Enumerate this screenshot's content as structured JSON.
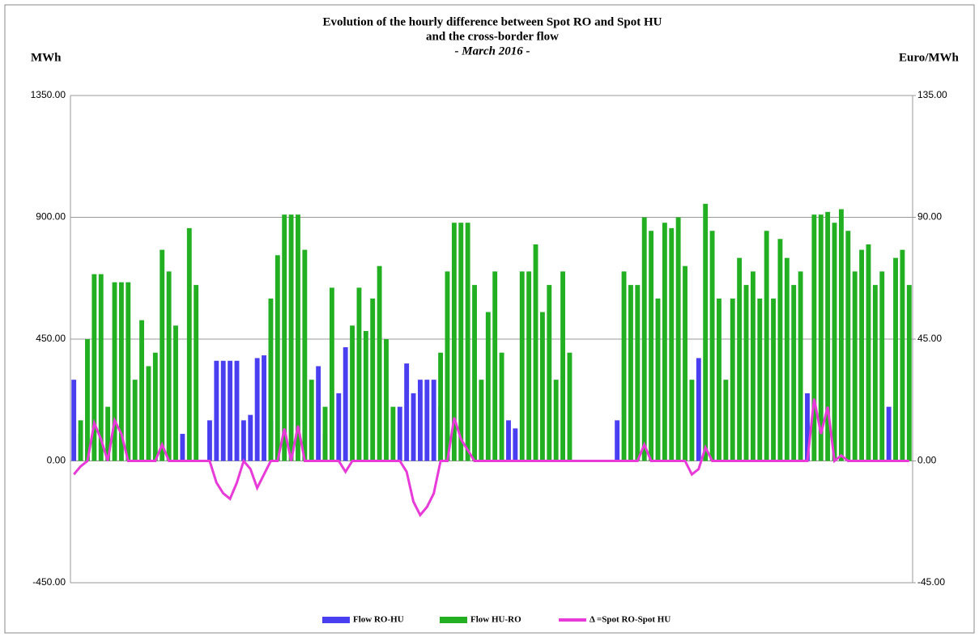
{
  "chart_data": {
    "type": "combo",
    "title": [
      "Evolution of the hourly difference between Spot RO and Spot HU",
      "and the cross-border flow",
      "- March 2016 -"
    ],
    "y_label": "MWh",
    "y2_label": "Euro/MWh",
    "ylim": [
      -450,
      1350
    ],
    "yticks": [
      {
        "value": -450,
        "label": "-450.00"
      },
      {
        "value": 0,
        "label": "0.00"
      },
      {
        "value": 450,
        "label": "450.00"
      },
      {
        "value": 900,
        "label": "900.00"
      },
      {
        "value": 1350,
        "label": "1350.00"
      }
    ],
    "y2lim": [
      -45,
      135
    ],
    "y2ticks": [
      {
        "value": -45,
        "label": "-45.00"
      },
      {
        "value": 0,
        "label": "0.00"
      },
      {
        "value": 45,
        "label": "45.00"
      },
      {
        "value": 90,
        "label": "90.00"
      },
      {
        "value": 135,
        "label": "135.00"
      }
    ],
    "grid": true,
    "legend": "bottom",
    "series": [
      {
        "name": "Flow RO-HU",
        "type": "bar",
        "color": "#4a3ff0",
        "values": [
          300,
          100,
          0,
          0,
          0,
          0,
          0,
          0,
          0,
          0,
          0,
          0,
          0,
          0,
          0,
          0,
          100,
          0,
          0,
          0,
          150,
          370,
          370,
          370,
          370,
          150,
          170,
          380,
          390,
          150,
          0,
          0,
          0,
          0,
          0,
          0,
          350,
          100,
          0,
          250,
          420,
          0,
          0,
          0,
          0,
          0,
          0,
          0,
          200,
          360,
          250,
          300,
          300,
          300,
          200,
          100,
          0,
          0,
          0,
          0,
          0,
          0,
          0,
          0,
          150,
          120,
          0,
          0,
          0,
          0,
          0,
          0,
          0,
          0,
          0,
          0,
          0,
          0,
          0,
          0,
          150,
          0,
          0,
          0,
          0,
          0,
          0,
          0,
          0,
          0,
          0,
          0,
          380,
          0,
          0,
          0,
          0,
          0,
          0,
          0,
          0,
          0,
          0,
          0,
          0,
          0,
          0,
          0,
          250,
          0,
          0,
          0,
          0,
          0,
          0,
          0,
          0,
          0,
          0,
          0,
          200,
          0,
          0,
          0
        ]
      },
      {
        "name": "Flow HU-RO",
        "type": "bar",
        "color": "#22b022",
        "values": [
          0,
          150,
          450,
          690,
          690,
          200,
          660,
          660,
          660,
          300,
          520,
          350,
          400,
          780,
          700,
          500,
          0,
          860,
          650,
          0,
          0,
          0,
          0,
          0,
          0,
          0,
          0,
          0,
          0,
          600,
          760,
          910,
          910,
          910,
          780,
          300,
          0,
          200,
          640,
          0,
          0,
          500,
          640,
          480,
          600,
          720,
          450,
          200,
          0,
          0,
          0,
          0,
          0,
          0,
          400,
          700,
          880,
          880,
          880,
          650,
          300,
          550,
          700,
          400,
          0,
          0,
          700,
          700,
          800,
          550,
          650,
          300,
          700,
          400,
          0,
          0,
          0,
          0,
          0,
          0,
          0,
          700,
          650,
          650,
          900,
          850,
          600,
          880,
          860,
          900,
          720,
          300,
          0,
          950,
          850,
          600,
          300,
          600,
          750,
          650,
          700,
          600,
          850,
          600,
          820,
          750,
          650,
          700,
          0,
          910,
          910,
          920,
          880,
          930,
          850,
          700,
          780,
          800,
          650,
          700,
          0,
          750,
          780,
          650
        ]
      },
      {
        "name": "Δ =Spot RO-Spot HU",
        "type": "line",
        "axis": "y2",
        "color": "#e83ad8",
        "values": [
          -5,
          -2,
          0,
          14,
          8,
          0,
          15,
          10,
          0,
          0,
          0,
          0,
          0,
          6,
          0,
          0,
          0,
          0,
          0,
          0,
          0,
          -8,
          -12,
          -14,
          -8,
          0,
          -3,
          -10,
          -5,
          0,
          0,
          12,
          0,
          13,
          0,
          0,
          0,
          0,
          0,
          0,
          -4,
          0,
          0,
          0,
          0,
          0,
          0,
          0,
          0,
          -4,
          -15,
          -20,
          -17,
          -12,
          0,
          0,
          16,
          8,
          4,
          0,
          0,
          0,
          0,
          0,
          0,
          0,
          0,
          0,
          0,
          0,
          0,
          0,
          0,
          0,
          0,
          0,
          0,
          0,
          0,
          0,
          0,
          0,
          0,
          0,
          6,
          0,
          0,
          0,
          0,
          0,
          0,
          -5,
          -3,
          5,
          0,
          0,
          0,
          0,
          0,
          0,
          0,
          0,
          0,
          0,
          0,
          0,
          0,
          0,
          0,
          23,
          10,
          20,
          0,
          2,
          0,
          0,
          0,
          0,
          0,
          0,
          0,
          0,
          0,
          0
        ]
      }
    ]
  }
}
